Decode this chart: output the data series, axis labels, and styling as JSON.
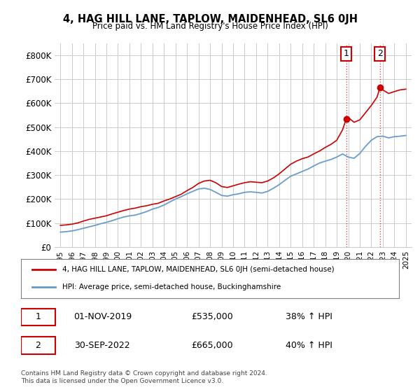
{
  "title": "4, HAG HILL LANE, TAPLOW, MAIDENHEAD, SL6 0JH",
  "subtitle": "Price paid vs. HM Land Registry's House Price Index (HPI)",
  "ylabel": "",
  "xlabel": "",
  "ylim": [
    0,
    850000
  ],
  "yticks": [
    0,
    100000,
    200000,
    300000,
    400000,
    500000,
    600000,
    700000,
    800000
  ],
  "ytick_labels": [
    "£0",
    "£100K",
    "£200K",
    "£300K",
    "£400K",
    "£500K",
    "£600K",
    "£700K",
    "£800K"
  ],
  "red_color": "#cc0000",
  "blue_color": "#6699cc",
  "legend_red_label": "4, HAG HILL LANE, TAPLOW, MAIDENHEAD, SL6 0JH (semi-detached house)",
  "legend_blue_label": "HPI: Average price, semi-detached house, Buckinghamshire",
  "point1_x": 2019.83,
  "point1_y": 535000,
  "point1_label": "1",
  "point1_date": "01-NOV-2019",
  "point1_price": "£535,000",
  "point1_hpi": "38% ↑ HPI",
  "point2_x": 2022.75,
  "point2_y": 665000,
  "point2_label": "2",
  "point2_date": "30-SEP-2022",
  "point2_price": "£665,000",
  "point2_hpi": "40% ↑ HPI",
  "footer": "Contains HM Land Registry data © Crown copyright and database right 2024.\nThis data is licensed under the Open Government Licence v3.0.",
  "xmin": 1994.5,
  "xmax": 2025.5,
  "background_color": "#ffffff",
  "grid_color": "#cccccc",
  "years": [
    1995,
    1996,
    1997,
    1998,
    1999,
    2000,
    2001,
    2002,
    2003,
    2004,
    2005,
    2006,
    2007,
    2008,
    2009,
    2010,
    2011,
    2012,
    2013,
    2014,
    2015,
    2016,
    2017,
    2018,
    2019,
    2020,
    2021,
    2022,
    2023,
    2024,
    2025
  ],
  "red_x": [
    1995.0,
    1995.5,
    1996.0,
    1996.5,
    1997.0,
    1997.5,
    1998.0,
    1998.5,
    1999.0,
    1999.5,
    2000.0,
    2000.5,
    2001.0,
    2001.5,
    2002.0,
    2002.5,
    2003.0,
    2003.5,
    2004.0,
    2004.5,
    2005.0,
    2005.5,
    2006.0,
    2006.5,
    2007.0,
    2007.5,
    2008.0,
    2008.5,
    2009.0,
    2009.5,
    2010.0,
    2010.5,
    2011.0,
    2011.5,
    2012.0,
    2012.5,
    2013.0,
    2013.5,
    2014.0,
    2014.5,
    2015.0,
    2015.5,
    2016.0,
    2016.5,
    2017.0,
    2017.5,
    2018.0,
    2018.5,
    2019.0,
    2019.5,
    2019.83,
    2020.0,
    2020.5,
    2021.0,
    2021.5,
    2022.0,
    2022.5,
    2022.75,
    2023.0,
    2023.5,
    2024.0,
    2024.5,
    2025.0
  ],
  "red_y": [
    90000,
    92000,
    95000,
    100000,
    108000,
    115000,
    120000,
    125000,
    130000,
    138000,
    145000,
    152000,
    158000,
    162000,
    168000,
    172000,
    178000,
    182000,
    192000,
    200000,
    210000,
    220000,
    235000,
    248000,
    265000,
    275000,
    278000,
    268000,
    252000,
    248000,
    255000,
    262000,
    268000,
    272000,
    270000,
    268000,
    275000,
    288000,
    305000,
    325000,
    345000,
    358000,
    368000,
    375000,
    388000,
    400000,
    415000,
    428000,
    445000,
    488000,
    535000,
    540000,
    520000,
    530000,
    560000,
    590000,
    625000,
    665000,
    655000,
    640000,
    648000,
    655000,
    658000
  ],
  "blue_x": [
    1995.0,
    1995.5,
    1996.0,
    1996.5,
    1997.0,
    1997.5,
    1998.0,
    1998.5,
    1999.0,
    1999.5,
    2000.0,
    2000.5,
    2001.0,
    2001.5,
    2002.0,
    2002.5,
    2003.0,
    2003.5,
    2004.0,
    2004.5,
    2005.0,
    2005.5,
    2006.0,
    2006.5,
    2007.0,
    2007.5,
    2008.0,
    2008.5,
    2009.0,
    2009.5,
    2010.0,
    2010.5,
    2011.0,
    2011.5,
    2012.0,
    2012.5,
    2013.0,
    2013.5,
    2014.0,
    2014.5,
    2015.0,
    2015.5,
    2016.0,
    2016.5,
    2017.0,
    2017.5,
    2018.0,
    2018.5,
    2019.0,
    2019.5,
    2020.0,
    2020.5,
    2021.0,
    2021.5,
    2022.0,
    2022.5,
    2023.0,
    2023.5,
    2024.0,
    2024.5,
    2025.0
  ],
  "blue_y": [
    62000,
    64000,
    67000,
    72000,
    78000,
    84000,
    90000,
    97000,
    103000,
    110000,
    118000,
    125000,
    130000,
    133000,
    140000,
    148000,
    158000,
    165000,
    175000,
    188000,
    200000,
    210000,
    222000,
    232000,
    242000,
    245000,
    240000,
    228000,
    215000,
    212000,
    218000,
    222000,
    228000,
    230000,
    228000,
    225000,
    232000,
    245000,
    260000,
    278000,
    295000,
    305000,
    315000,
    325000,
    338000,
    350000,
    358000,
    365000,
    375000,
    388000,
    375000,
    370000,
    390000,
    420000,
    445000,
    460000,
    462000,
    455000,
    460000,
    462000,
    465000
  ]
}
